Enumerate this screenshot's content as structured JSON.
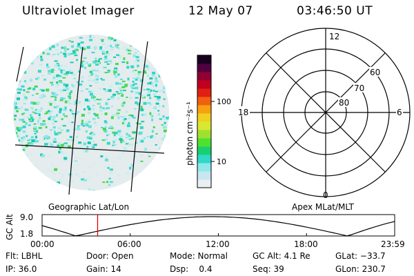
{
  "header": {
    "instrument": "Ultraviolet Imager",
    "date": "12 May 07",
    "time": "03:46:50 UT"
  },
  "image_panel": {
    "left_label": "Geographic Lat/Lon",
    "right_label": "Apex MLat/MLT"
  },
  "colorbar": {
    "label": "photon cm⁻²s⁻¹",
    "ticks": [
      {
        "label": "100",
        "value": 100
      },
      {
        "label": "10",
        "value": 10
      }
    ],
    "colors": [
      "#eaeef0",
      "#c8e6f0",
      "#8ee8e8",
      "#30d8c8",
      "#18d070",
      "#50e030",
      "#a0e030",
      "#d8e830",
      "#f0d020",
      "#f8a010",
      "#f06010",
      "#e02010",
      "#c00020",
      "#900030",
      "#500040",
      "#180020"
    ]
  },
  "polar_grid": {
    "mlt_labels": {
      "top": "12",
      "left": "18",
      "right": "6",
      "bottom": "0"
    },
    "lat_labels": [
      "60",
      "70",
      "80"
    ]
  },
  "alt_plot": {
    "y_title": "GC Alt",
    "y_ticks": [
      "9.0",
      "1.8"
    ],
    "x_ticks": [
      "00:00",
      "06:00",
      "12:00",
      "18:00",
      "23:59"
    ],
    "current_time_hours": 3.78
  },
  "status": {
    "flt": "Flt: LBHL",
    "ip": "IP: 36.0",
    "door": "Door: Open",
    "gain": "Gain: 14",
    "mode": "Mode: Normal",
    "dsp": "Dsp:    0.4",
    "gc_alt": "GC Alt: 4.1 Re",
    "seq": "Seq: 39",
    "glat": "GLat: −33.7",
    "glon": "GLon: 230.7"
  }
}
